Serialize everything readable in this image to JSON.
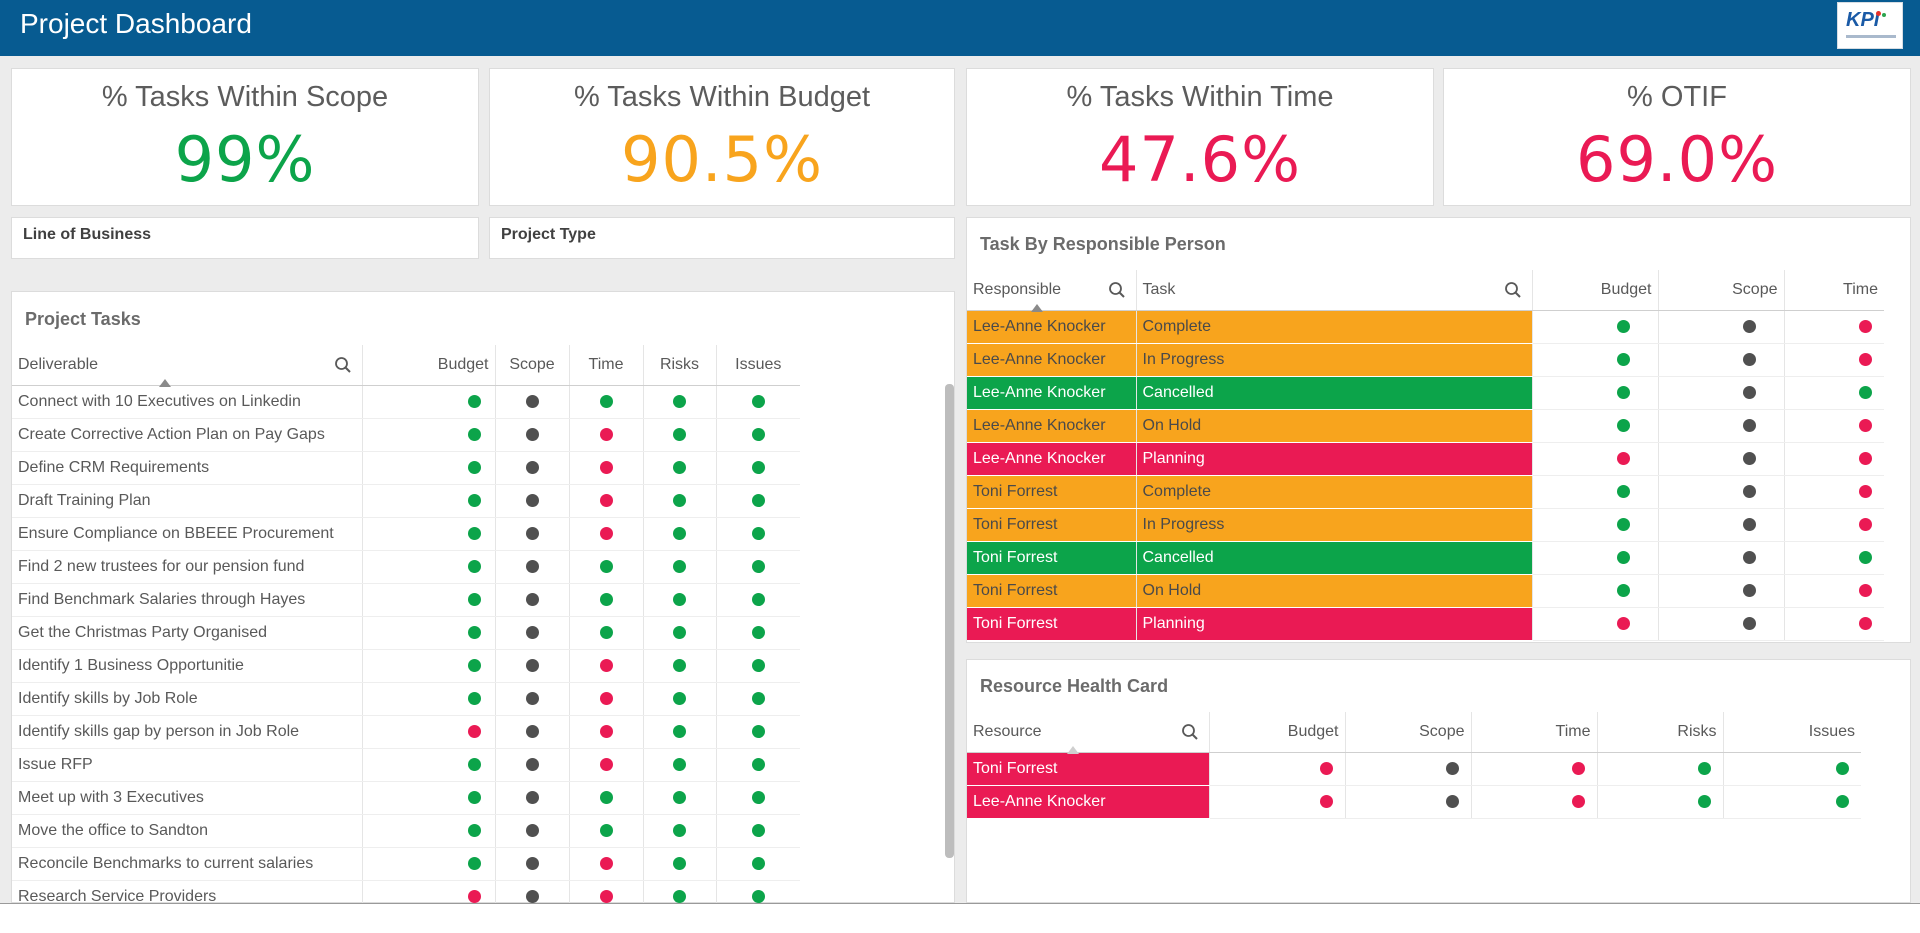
{
  "header": {
    "title": "Project Dashboard",
    "logo_text": "KPI"
  },
  "colors": {
    "green": "#0ca44a",
    "red": "#ea1a54",
    "grey": "#505050",
    "orange": "#f8a41d",
    "brand": "#075b91"
  },
  "kpis": [
    {
      "label": "% Tasks Within Scope",
      "value": "99%",
      "color": "#0ca44a"
    },
    {
      "label": "% Tasks Within Budget",
      "value": "90.5%",
      "color": "#f8a41d"
    },
    {
      "label": "% Tasks Within Time",
      "value": "47.6%",
      "color": "#ea1a54"
    },
    {
      "label": "% OTIF",
      "value": "69.0%",
      "color": "#ea1a54"
    }
  ],
  "filters": {
    "line_of_business": "Line of Business",
    "project_type": "Project Type"
  },
  "project_tasks": {
    "title": "Project Tasks",
    "columns": [
      "Deliverable",
      "Budget",
      "Scope",
      "Time",
      "Risks",
      "Issues"
    ],
    "rows": [
      {
        "name": "Connect with 10 Executives on Linkedin",
        "s": [
          "g",
          "k",
          "g",
          "g",
          "g"
        ]
      },
      {
        "name": "Create Corrective Action Plan on Pay Gaps",
        "s": [
          "g",
          "k",
          "r",
          "g",
          "g"
        ]
      },
      {
        "name": "Define CRM Requirements",
        "s": [
          "g",
          "k",
          "r",
          "g",
          "g"
        ]
      },
      {
        "name": "Draft Training Plan",
        "s": [
          "g",
          "k",
          "r",
          "g",
          "g"
        ]
      },
      {
        "name": "Ensure Compliance on BBEEE Procurement",
        "s": [
          "g",
          "k",
          "r",
          "g",
          "g"
        ]
      },
      {
        "name": "Find 2 new trustees for our pension fund",
        "s": [
          "g",
          "k",
          "g",
          "g",
          "g"
        ]
      },
      {
        "name": "Find Benchmark Salaries through Hayes",
        "s": [
          "g",
          "k",
          "g",
          "g",
          "g"
        ]
      },
      {
        "name": "Get the Christmas Party Organised",
        "s": [
          "g",
          "k",
          "g",
          "g",
          "g"
        ]
      },
      {
        "name": "Identify 1 Business Opportunitie",
        "s": [
          "g",
          "k",
          "r",
          "g",
          "g"
        ]
      },
      {
        "name": "Identify skills by Job Role",
        "s": [
          "g",
          "k",
          "r",
          "g",
          "g"
        ]
      },
      {
        "name": "Identify skills gap by person in Job Role",
        "s": [
          "r",
          "k",
          "r",
          "g",
          "g"
        ]
      },
      {
        "name": "Issue RFP",
        "s": [
          "g",
          "k",
          "r",
          "g",
          "g"
        ]
      },
      {
        "name": "Meet up with 3 Executives",
        "s": [
          "g",
          "k",
          "g",
          "g",
          "g"
        ]
      },
      {
        "name": "Move the office to Sandton",
        "s": [
          "g",
          "k",
          "g",
          "g",
          "g"
        ]
      },
      {
        "name": "Reconcile Benchmarks to current salaries",
        "s": [
          "g",
          "k",
          "r",
          "g",
          "g"
        ]
      },
      {
        "name": "Research Service Providers",
        "s": [
          "r",
          "k",
          "r",
          "g",
          "g"
        ]
      }
    ]
  },
  "task_by_person": {
    "title": "Task By Responsible Person",
    "columns": [
      "Responsible",
      "Task",
      "Budget",
      "Scope",
      "Time"
    ],
    "rows": [
      {
        "person": "Lee-Anne Knocker",
        "task": "Complete",
        "bg": "o",
        "s": [
          "g",
          "k",
          "r"
        ]
      },
      {
        "person": "Lee-Anne Knocker",
        "task": "In Progress",
        "bg": "o",
        "s": [
          "g",
          "k",
          "r"
        ]
      },
      {
        "person": "Lee-Anne Knocker",
        "task": "Cancelled",
        "bg": "g",
        "s": [
          "g",
          "k",
          "g"
        ]
      },
      {
        "person": "Lee-Anne Knocker",
        "task": "On Hold",
        "bg": "o",
        "s": [
          "g",
          "k",
          "r"
        ]
      },
      {
        "person": "Lee-Anne Knocker",
        "task": "Planning",
        "bg": "r",
        "s": [
          "r",
          "k",
          "r"
        ]
      },
      {
        "person": "Toni Forrest",
        "task": "Complete",
        "bg": "o",
        "s": [
          "g",
          "k",
          "r"
        ]
      },
      {
        "person": "Toni Forrest",
        "task": "In Progress",
        "bg": "o",
        "s": [
          "g",
          "k",
          "r"
        ]
      },
      {
        "person": "Toni Forrest",
        "task": "Cancelled",
        "bg": "g",
        "s": [
          "g",
          "k",
          "g"
        ]
      },
      {
        "person": "Toni Forrest",
        "task": "On Hold",
        "bg": "o",
        "s": [
          "g",
          "k",
          "r"
        ]
      },
      {
        "person": "Toni Forrest",
        "task": "Planning",
        "bg": "r",
        "s": [
          "r",
          "k",
          "r"
        ]
      }
    ]
  },
  "resource_health": {
    "title": "Resource Health Card",
    "columns": [
      "Resource",
      "Budget",
      "Scope",
      "Time",
      "Risks",
      "Issues"
    ],
    "rows": [
      {
        "name": "Toni Forrest",
        "s": [
          "r",
          "k",
          "r",
          "g",
          "g"
        ]
      },
      {
        "name": "Lee-Anne Knocker",
        "s": [
          "r",
          "k",
          "r",
          "g",
          "g"
        ]
      }
    ]
  }
}
